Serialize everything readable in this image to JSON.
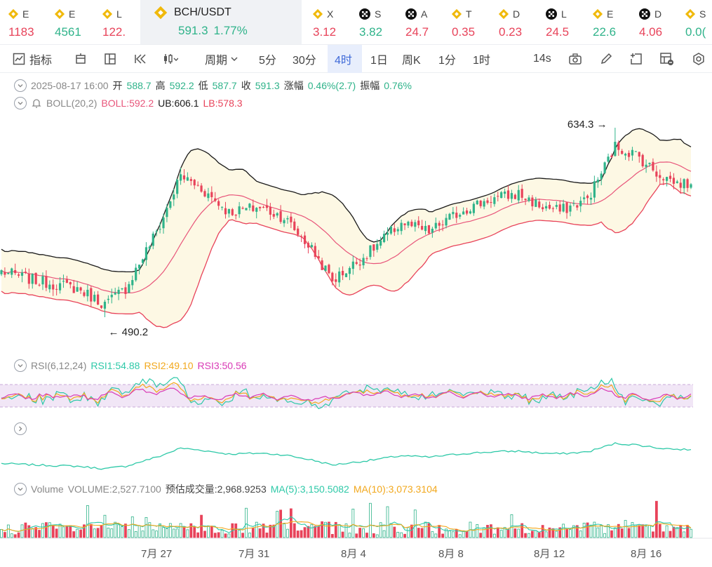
{
  "ticker": [
    {
      "sym": "E",
      "price": "1183",
      "dir": "down",
      "icon": "binance-icon",
      "x": 12
    },
    {
      "sym": "E",
      "price": "4561",
      "dir": "up",
      "icon": "binance-icon",
      "x": 78
    },
    {
      "sym": "L",
      "price": "122.",
      "dir": "down",
      "icon": "binance-icon",
      "x": 146
    },
    {
      "sym": "X",
      "price": "3.12",
      "dir": "down",
      "icon": "binance-icon",
      "x": 446
    },
    {
      "sym": "S",
      "price": "3.82",
      "dir": "up",
      "icon": "okx-icon",
      "x": 512
    },
    {
      "sym": "A",
      "price": "24.7",
      "dir": "down",
      "icon": "okx-icon",
      "x": 578
    },
    {
      "sym": "T",
      "price": "0.35",
      "dir": "down",
      "icon": "binance-icon",
      "x": 644
    },
    {
      "sym": "D",
      "price": "0.23",
      "dir": "down",
      "icon": "binance-icon",
      "x": 711
    },
    {
      "sym": "L",
      "price": "24.5",
      "dir": "down",
      "icon": "okx-icon",
      "x": 778
    },
    {
      "sym": "E",
      "price": "22.6",
      "dir": "up",
      "icon": "binance-icon",
      "x": 845
    },
    {
      "sym": "D",
      "price": "4.06",
      "dir": "down",
      "icon": "okx-icon",
      "x": 911
    },
    {
      "sym": "S",
      "price": "0.0(",
      "dir": "up",
      "icon": "binance-icon",
      "x": 977
    }
  ],
  "active_ticker": {
    "sym": "BCH/USDT",
    "price": "591.3",
    "change": "1.77%",
    "icon": "binance-icon"
  },
  "toolbar": {
    "indicators": "指标",
    "period": "周期",
    "intervals": [
      "5分",
      "30分",
      "4时",
      "1日",
      "周K",
      "1分",
      "1时"
    ],
    "active_interval": "4时",
    "countdown": "14s"
  },
  "ohlc": {
    "date": "2025-08-17 16:00",
    "open_label": "开",
    "open": "588.7",
    "high_label": "高",
    "high": "592.2",
    "low_label": "低",
    "low": "587.7",
    "close_label": "收",
    "close": "591.3",
    "change_label": "涨幅",
    "change": "0.46%(2.7)",
    "amp_label": "振幅",
    "amp": "0.76%"
  },
  "boll": {
    "label": "BOLL(20,2)",
    "boll": "BOLL:592.2",
    "ub": "UB:606.1",
    "lb": "LB:578.3"
  },
  "annotations": {
    "high": "634.3",
    "low": "490.2"
  },
  "rsi": {
    "label": "RSI(6,12,24)",
    "rsi1": "RSI1:54.88",
    "rsi2": "RSI2:49.10",
    "rsi3": "RSI3:50.56"
  },
  "volume": {
    "label": "Volume",
    "volume": "VOLUME:2,527.7100",
    "est_label": "预估成交量:2,968.9253",
    "ma5": "MA(5):3,150.5082",
    "ma10": "MA(10):3,073.3104"
  },
  "x_axis": [
    "7月 27",
    "7月 31",
    "8月 4",
    "8月 8",
    "8月 12",
    "8月 16"
  ],
  "colors": {
    "up": "#2fb38a",
    "down": "#e8435a",
    "mid": "#e8557a",
    "ub": "#1a1a1a",
    "lb": "#e8435a",
    "band": "#fdf8e4",
    "rsi1": "#2ec9a8",
    "rsi2": "#f2a81d",
    "rsi3": "#d93bb6",
    "accent": "#3f6ad8"
  },
  "chart_data": {
    "type": "candlestick",
    "interval": "4h",
    "x_range": [
      "2025-07-23",
      "2025-08-17"
    ],
    "close_anchors": [
      {
        "x": 0,
        "v": 525
      },
      {
        "x": 10,
        "v": 518
      },
      {
        "x": 22,
        "v": 512
      },
      {
        "x": 30,
        "v": 500
      },
      {
        "x": 36,
        "v": 512
      },
      {
        "x": 46,
        "v": 560
      },
      {
        "x": 52,
        "v": 598
      },
      {
        "x": 58,
        "v": 588
      },
      {
        "x": 66,
        "v": 570
      },
      {
        "x": 75,
        "v": 574
      },
      {
        "x": 82,
        "v": 566
      },
      {
        "x": 90,
        "v": 542
      },
      {
        "x": 96,
        "v": 518
      },
      {
        "x": 106,
        "v": 538
      },
      {
        "x": 116,
        "v": 562
      },
      {
        "x": 124,
        "v": 555
      },
      {
        "x": 134,
        "v": 572
      },
      {
        "x": 142,
        "v": 580
      },
      {
        "x": 150,
        "v": 584
      },
      {
        "x": 156,
        "v": 575
      },
      {
        "x": 162,
        "v": 571
      },
      {
        "x": 170,
        "v": 580
      },
      {
        "x": 174,
        "v": 600
      },
      {
        "x": 178,
        "v": 620
      },
      {
        "x": 184,
        "v": 614
      },
      {
        "x": 190,
        "v": 600
      },
      {
        "x": 196,
        "v": 592
      },
      {
        "x": 200,
        "v": 592
      }
    ],
    "high": 634.3,
    "low": 490.2,
    "last": {
      "open": 588.7,
      "high": 592.2,
      "low": 587.7,
      "close": 591.3
    },
    "boll_last": {
      "mid": 592.2,
      "ub": 606.1,
      "lb": 578.3
    },
    "rsi_last": {
      "rsi1": 54.88,
      "rsi2": 49.1,
      "rsi3": 50.56
    },
    "volume_last": 2527.71,
    "volume_ma5": 3150.5082,
    "volume_ma10": 3073.3104
  }
}
